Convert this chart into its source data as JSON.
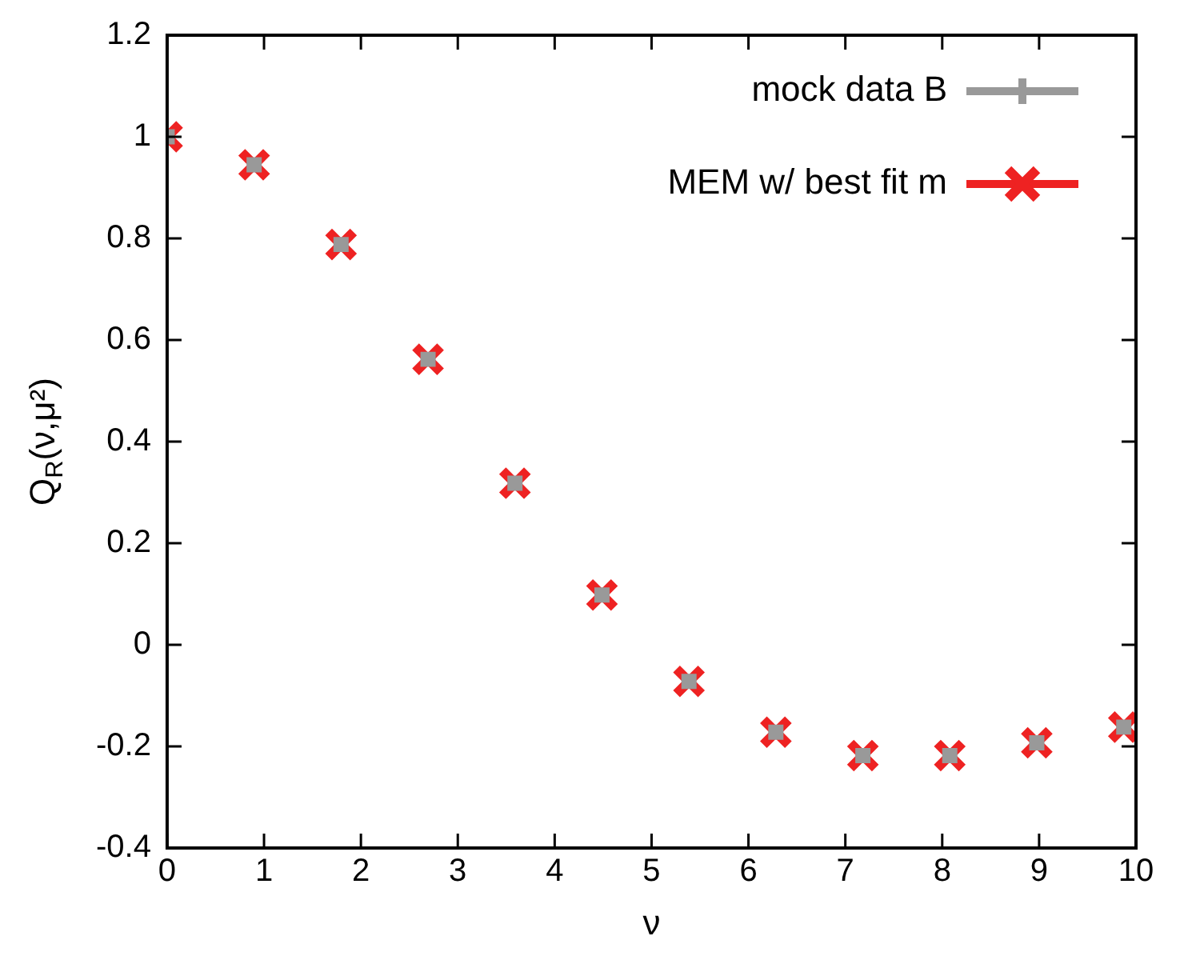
{
  "chart_data": {
    "type": "scatter",
    "xlabel": "ν",
    "ylabel": "Q$_{R}$(ν,μ²)",
    "xlim": [
      0,
      10
    ],
    "xticks": [
      0,
      1,
      2,
      3,
      4,
      5,
      6,
      7,
      8,
      9,
      10
    ],
    "ylim": [
      -0.4,
      1.2
    ],
    "yticks": [
      -0.4,
      -0.2,
      0,
      0.2,
      0.4,
      0.6,
      0.8,
      1,
      1.2
    ],
    "x": [
      0,
      0.898,
      1.795,
      2.693,
      3.59,
      4.488,
      5.386,
      6.283,
      7.181,
      8.078,
      8.976,
      9.874
    ],
    "grid": false,
    "legend": "top right",
    "series": [
      {
        "name": "mock data B",
        "color": "#999999",
        "marker": "square",
        "values": [
          1.0,
          0.945,
          0.788,
          0.562,
          0.318,
          0.098,
          -0.072,
          -0.172,
          -0.218,
          -0.218,
          -0.193,
          -0.162
        ]
      },
      {
        "name": "MEM w/ best fit m",
        "color": "#ee2222",
        "marker": "cross",
        "values": [
          1.0,
          0.945,
          0.788,
          0.562,
          0.318,
          0.098,
          -0.072,
          -0.172,
          -0.218,
          -0.218,
          -0.193,
          -0.162
        ]
      }
    ]
  }
}
